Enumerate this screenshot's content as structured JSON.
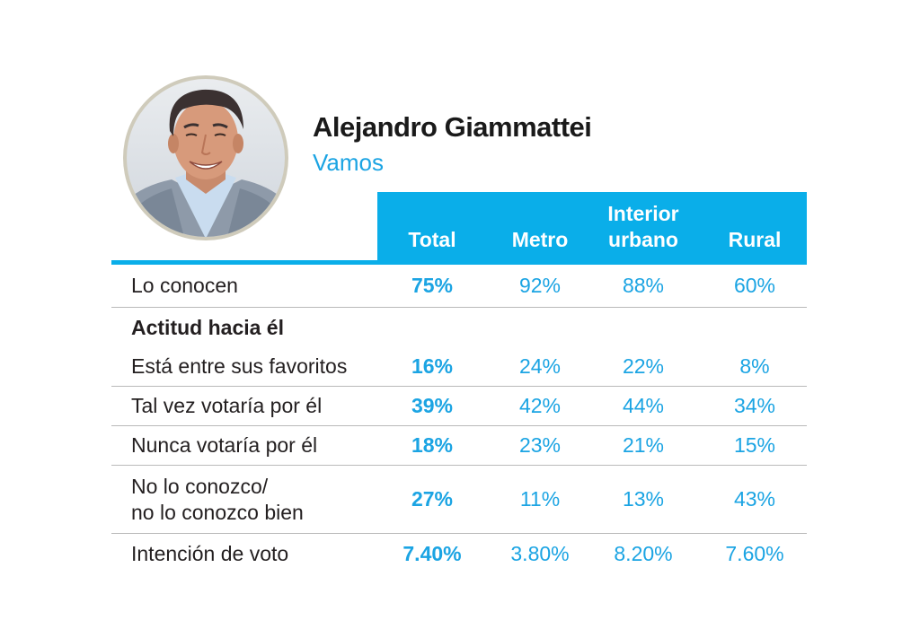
{
  "candidate": {
    "name": "Alejandro Giammattei",
    "party": "Vamos"
  },
  "colors": {
    "accent": "#0aaee9",
    "value_text": "#1ba4e3",
    "ring": "#cfcbbb",
    "divider": "#b9b9b9"
  },
  "chart_data": {
    "type": "table",
    "columns": [
      "Total",
      "Metro",
      "Interior urbano",
      "Rural"
    ],
    "columns_lines": [
      [
        "Total"
      ],
      [
        "Metro"
      ],
      [
        "Interior",
        "urbano"
      ],
      [
        "Rural"
      ]
    ],
    "rows": [
      {
        "label_lines": [
          "Lo conocen"
        ],
        "values": [
          "75%",
          "92%",
          "88%",
          "60%"
        ]
      },
      {
        "label_lines": [
          "Actitud hacia él"
        ],
        "section": true,
        "values": []
      },
      {
        "label_lines": [
          "Está entre sus favoritos"
        ],
        "values": [
          "16%",
          "24%",
          "22%",
          "8%"
        ]
      },
      {
        "label_lines": [
          "Tal vez votaría por él"
        ],
        "values": [
          "39%",
          "42%",
          "44%",
          "34%"
        ]
      },
      {
        "label_lines": [
          "Nunca votaría por él"
        ],
        "values": [
          "18%",
          "23%",
          "21%",
          "15%"
        ]
      },
      {
        "label_lines": [
          "No lo conozco/",
          "no lo conozco bien"
        ],
        "values": [
          "27%",
          "11%",
          "13%",
          "43%"
        ]
      },
      {
        "label_lines": [
          "Intención de voto"
        ],
        "values": [
          "7.40%",
          "3.80%",
          "8.20%",
          "7.60%"
        ]
      }
    ]
  }
}
